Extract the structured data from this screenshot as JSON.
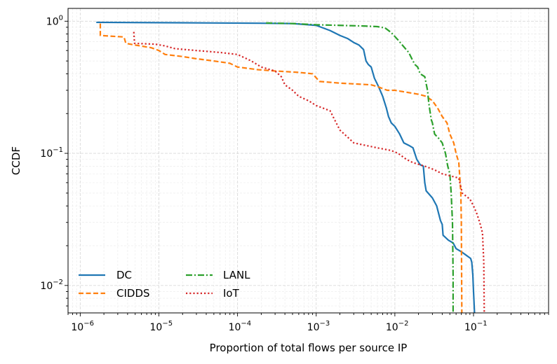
{
  "chart_data": {
    "type": "line",
    "title": "",
    "xlabel": "Proportion of total flows per source IP",
    "ylabel": "CCDF",
    "xscale": "log",
    "yscale": "log",
    "xlim": [
      7e-07,
      0.9
    ],
    "ylim": [
      0.0062,
      1.25
    ],
    "grid": true,
    "x_ticks": [
      {
        "value": 1e-06,
        "base": "10",
        "exp": "−6"
      },
      {
        "value": 1e-05,
        "base": "10",
        "exp": "−5"
      },
      {
        "value": 0.0001,
        "base": "10",
        "exp": "−4"
      },
      {
        "value": 0.001,
        "base": "10",
        "exp": "−3"
      },
      {
        "value": 0.01,
        "base": "10",
        "exp": "−2"
      },
      {
        "value": 0.1,
        "base": "10",
        "exp": "−1"
      }
    ],
    "y_ticks": [
      {
        "value": 0.01,
        "base": "10",
        "exp": "−2"
      },
      {
        "value": 0.1,
        "base": "10",
        "exp": "−1"
      },
      {
        "value": 1,
        "base": "10",
        "exp": "0"
      }
    ],
    "legend": {
      "location": "lower-left",
      "columns": 2
    },
    "series": [
      {
        "name": "DC",
        "color": "#1f77b4",
        "dash": "solid",
        "points": [
          [
            1.6e-06,
            0.98
          ],
          [
            1e-05,
            0.975
          ],
          [
            5e-05,
            0.97
          ],
          [
            0.0002,
            0.965
          ],
          [
            0.0005,
            0.96
          ],
          [
            0.001,
            0.93
          ],
          [
            0.0015,
            0.85
          ],
          [
            0.002,
            0.78
          ],
          [
            0.0025,
            0.74
          ],
          [
            0.003,
            0.69
          ],
          [
            0.0035,
            0.66
          ],
          [
            0.004,
            0.61
          ],
          [
            0.0043,
            0.5
          ],
          [
            0.0046,
            0.47
          ],
          [
            0.005,
            0.45
          ],
          [
            0.0055,
            0.37
          ],
          [
            0.0062,
            0.32
          ],
          [
            0.007,
            0.27
          ],
          [
            0.0078,
            0.22
          ],
          [
            0.0083,
            0.19
          ],
          [
            0.009,
            0.17
          ],
          [
            0.01,
            0.16
          ],
          [
            0.0115,
            0.14
          ],
          [
            0.013,
            0.12
          ],
          [
            0.015,
            0.115
          ],
          [
            0.017,
            0.11
          ],
          [
            0.019,
            0.09
          ],
          [
            0.021,
            0.082
          ],
          [
            0.023,
            0.08
          ],
          [
            0.024,
            0.06
          ],
          [
            0.025,
            0.052
          ],
          [
            0.03,
            0.046
          ],
          [
            0.034,
            0.04
          ],
          [
            0.038,
            0.031
          ],
          [
            0.04,
            0.029
          ],
          [
            0.041,
            0.024
          ],
          [
            0.048,
            0.022
          ],
          [
            0.055,
            0.021
          ],
          [
            0.06,
            0.019
          ],
          [
            0.07,
            0.018
          ],
          [
            0.08,
            0.017
          ],
          [
            0.092,
            0.016
          ],
          [
            0.095,
            0.015
          ],
          [
            0.098,
            0.012
          ],
          [
            0.1,
            0.009
          ],
          [
            0.103,
            0.0062
          ]
        ]
      },
      {
        "name": "CIDDS",
        "color": "#ff7f0e",
        "dash": "dashed",
        "points": [
          [
            1.8e-06,
            0.96
          ],
          [
            1.8e-06,
            0.78
          ],
          [
            2.5e-06,
            0.77
          ],
          [
            3.6e-06,
            0.76
          ],
          [
            3.8e-06,
            0.68
          ],
          [
            5e-06,
            0.66
          ],
          [
            8e-06,
            0.63
          ],
          [
            1e-05,
            0.6
          ],
          [
            1.2e-05,
            0.56
          ],
          [
            2e-05,
            0.54
          ],
          [
            3e-05,
            0.52
          ],
          [
            5e-05,
            0.5
          ],
          [
            8e-05,
            0.48
          ],
          [
            0.0001,
            0.45
          ],
          [
            0.00018,
            0.43
          ],
          [
            0.0003,
            0.42
          ],
          [
            0.0006,
            0.41
          ],
          [
            0.0009,
            0.4
          ],
          [
            0.0011,
            0.35
          ],
          [
            0.002,
            0.34
          ],
          [
            0.005,
            0.33
          ],
          [
            0.006,
            0.32
          ],
          [
            0.008,
            0.3
          ],
          [
            0.01,
            0.3
          ],
          [
            0.02,
            0.28
          ],
          [
            0.025,
            0.27
          ],
          [
            0.03,
            0.25
          ],
          [
            0.035,
            0.22
          ],
          [
            0.04,
            0.19
          ],
          [
            0.046,
            0.17
          ],
          [
            0.05,
            0.14
          ],
          [
            0.056,
            0.12
          ],
          [
            0.06,
            0.1
          ],
          [
            0.065,
            0.085
          ],
          [
            0.069,
            0.05
          ],
          [
            0.07,
            0.03
          ],
          [
            0.071,
            0.0062
          ]
        ]
      },
      {
        "name": "LANL",
        "color": "#2ca02c",
        "dash": "dashdot",
        "points": [
          [
            0.00023,
            0.97
          ],
          [
            0.0005,
            0.96
          ],
          [
            0.001,
            0.94
          ],
          [
            0.002,
            0.93
          ],
          [
            0.004,
            0.92
          ],
          [
            0.006,
            0.91
          ],
          [
            0.0075,
            0.89
          ],
          [
            0.009,
            0.82
          ],
          [
            0.011,
            0.72
          ],
          [
            0.013,
            0.64
          ],
          [
            0.015,
            0.58
          ],
          [
            0.017,
            0.5
          ],
          [
            0.018,
            0.47
          ],
          [
            0.0195,
            0.45
          ],
          [
            0.021,
            0.4
          ],
          [
            0.024,
            0.38
          ],
          [
            0.026,
            0.3
          ],
          [
            0.027,
            0.24
          ],
          [
            0.029,
            0.18
          ],
          [
            0.03,
            0.17
          ],
          [
            0.032,
            0.14
          ],
          [
            0.036,
            0.13
          ],
          [
            0.04,
            0.12
          ],
          [
            0.044,
            0.1
          ],
          [
            0.047,
            0.08
          ],
          [
            0.05,
            0.07
          ],
          [
            0.052,
            0.05
          ],
          [
            0.054,
            0.03
          ],
          [
            0.055,
            0.012
          ],
          [
            0.055,
            0.0062
          ]
        ]
      },
      {
        "name": "IoT",
        "color": "#d62728",
        "dash": "dotted",
        "points": [
          [
            4.8e-06,
            0.83
          ],
          [
            4.9e-06,
            0.68
          ],
          [
            9e-06,
            0.67
          ],
          [
            1.2e-05,
            0.65
          ],
          [
            1.6e-05,
            0.62
          ],
          [
            3e-05,
            0.6
          ],
          [
            6e-05,
            0.58
          ],
          [
            0.0001,
            0.56
          ],
          [
            0.00015,
            0.5
          ],
          [
            0.0002,
            0.45
          ],
          [
            0.0003,
            0.42
          ],
          [
            0.00036,
            0.38
          ],
          [
            0.0004,
            0.33
          ],
          [
            0.0005,
            0.3
          ],
          [
            0.0006,
            0.27
          ],
          [
            0.0008,
            0.25
          ],
          [
            0.001,
            0.23
          ],
          [
            0.0015,
            0.21
          ],
          [
            0.002,
            0.15
          ],
          [
            0.0026,
            0.13
          ],
          [
            0.003,
            0.12
          ],
          [
            0.006,
            0.11
          ],
          [
            0.009,
            0.105
          ],
          [
            0.011,
            0.1
          ],
          [
            0.014,
            0.09
          ],
          [
            0.017,
            0.085
          ],
          [
            0.024,
            0.08
          ],
          [
            0.032,
            0.075
          ],
          [
            0.04,
            0.07
          ],
          [
            0.065,
            0.065
          ],
          [
            0.072,
            0.05
          ],
          [
            0.09,
            0.045
          ],
          [
            0.1,
            0.04
          ],
          [
            0.11,
            0.035
          ],
          [
            0.12,
            0.03
          ],
          [
            0.13,
            0.025
          ],
          [
            0.135,
            0.015
          ],
          [
            0.137,
            0.0062
          ]
        ]
      }
    ]
  }
}
